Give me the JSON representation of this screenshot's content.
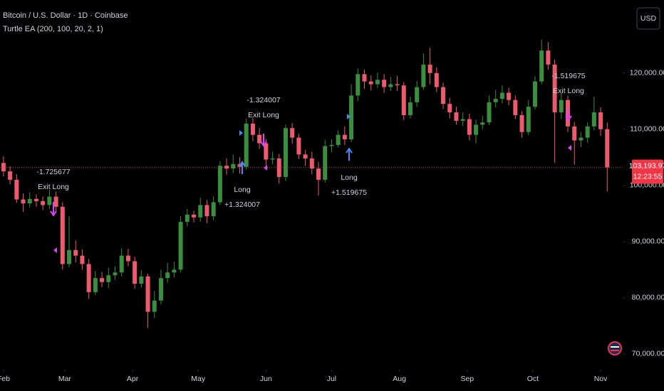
{
  "chart_data": {
    "type": "candlestick",
    "title": "Bitcoin / U.S. Dollar · 1D · Coinbase",
    "subtitle": "Turtle EA (200, 100, 20, 2, 1)",
    "currency": "USD",
    "up_color": "#3a8f3e",
    "down_color": "#ee5a6d",
    "grid": false,
    "xlim": [
      -1.6,
      283.4
    ],
    "ylim": [
      67200,
      133000
    ],
    "xticks": [
      {
        "value": 0,
        "label": "Feb"
      },
      {
        "value": 28,
        "label": "Mar"
      },
      {
        "value": 59,
        "label": "Apr"
      },
      {
        "value": 89,
        "label": "May"
      },
      {
        "value": 120,
        "label": "Jun"
      },
      {
        "value": 150,
        "label": "Jul"
      },
      {
        "value": 181,
        "label": "Aug"
      },
      {
        "value": 212,
        "label": "Sep"
      },
      {
        "value": 242,
        "label": "Oct"
      },
      {
        "value": 273,
        "label": "Nov"
      }
    ],
    "yticks": [
      {
        "value": 70000,
        "label": "70,000.00"
      },
      {
        "value": 80000,
        "label": "80,000.00"
      },
      {
        "value": 90000,
        "label": "90,000.00"
      },
      {
        "value": 100000,
        "label": "100,000.00"
      },
      {
        "value": 110000,
        "label": "110,000.00"
      },
      {
        "value": 120000,
        "label": "120,000.00"
      }
    ],
    "x": [
      0,
      3,
      6,
      9,
      12,
      15,
      18,
      21,
      24,
      27,
      30,
      33,
      36,
      39,
      42,
      45,
      48,
      51,
      54,
      57,
      60,
      63,
      66,
      69,
      72,
      75,
      78,
      81,
      84,
      87,
      90,
      93,
      96,
      99,
      102,
      105,
      108,
      111,
      114,
      117,
      120,
      123,
      126,
      129,
      132,
      135,
      138,
      141,
      144,
      147,
      150,
      153,
      156,
      159,
      162,
      165,
      168,
      171,
      174,
      177,
      180,
      183,
      186,
      189,
      192,
      195,
      198,
      201,
      204,
      207,
      210,
      213,
      216,
      219,
      222,
      225,
      228,
      231,
      234,
      237,
      240,
      243,
      246,
      249,
      252,
      255,
      258,
      261,
      264,
      267,
      270,
      273,
      276
    ],
    "open": [
      104000,
      102500,
      101000,
      97500,
      96800,
      97600,
      97200,
      96500,
      98000,
      96200,
      86000,
      88500,
      87500,
      86000,
      81000,
      83500,
      82800,
      84000,
      84500,
      87500,
      86500,
      82500,
      83800,
      77500,
      79500,
      83500,
      84500,
      85000,
      93500,
      94800,
      94300,
      96500,
      94500,
      97000,
      103500,
      103000,
      103800,
      103300,
      111000,
      109000,
      107500,
      104600,
      104800,
      101500,
      110200,
      108500,
      105500,
      104800,
      103000,
      101000,
      107000,
      107200,
      109000,
      108200,
      116000,
      119800,
      118500,
      118000,
      118800,
      117500,
      118000,
      117800,
      112500,
      114800,
      117500,
      121500,
      120000,
      117500,
      114500,
      113000,
      111500,
      111800,
      109000,
      110800,
      111200,
      114800,
      115400,
      116500,
      115200,
      112500,
      109500,
      114000,
      118500,
      124000,
      121500,
      113000,
      115200,
      110500,
      108000,
      108500,
      110500,
      113000,
      110000
    ],
    "high": [
      105200,
      103400,
      102000,
      98600,
      98800,
      98400,
      98000,
      99200,
      98900,
      97000,
      94500,
      90200,
      88600,
      86900,
      84800,
      84600,
      85300,
      85600,
      88800,
      88700,
      87300,
      84900,
      84300,
      81200,
      85000,
      86200,
      86400,
      94500,
      95800,
      95500,
      97800,
      97400,
      98000,
      104300,
      104800,
      105500,
      105000,
      111900,
      112000,
      110200,
      108300,
      106000,
      105600,
      110800,
      111100,
      109200,
      106300,
      106000,
      104200,
      108100,
      108200,
      109800,
      110500,
      118000,
      120800,
      120600,
      119600,
      120100,
      119800,
      119300,
      119500,
      118400,
      115800,
      118600,
      123500,
      124500,
      121000,
      118300,
      115600,
      114000,
      113000,
      112800,
      111700,
      112400,
      116000,
      117000,
      117800,
      117400,
      116000,
      113200,
      115200,
      119400,
      126000,
      125500,
      122400,
      116500,
      116000,
      111300,
      109500,
      111200,
      115800,
      113900,
      111200
    ],
    "low": [
      101600,
      100200,
      96900,
      95300,
      96000,
      96200,
      95600,
      95800,
      95400,
      85000,
      85400,
      86300,
      85000,
      79800,
      80500,
      81900,
      81700,
      83200,
      83800,
      85600,
      81600,
      81800,
      74600,
      76400,
      78800,
      82700,
      83600,
      84500,
      92700,
      93400,
      93500,
      93300,
      93800,
      96500,
      101900,
      102200,
      102100,
      102800,
      107900,
      106500,
      103500,
      103800,
      100300,
      100800,
      107400,
      104700,
      103500,
      102000,
      98200,
      100500,
      105900,
      106800,
      107200,
      107700,
      115000,
      117200,
      116900,
      117300,
      116500,
      116800,
      116800,
      111600,
      111900,
      114000,
      117000,
      118000,
      116600,
      113600,
      111900,
      110800,
      110600,
      108000,
      107500,
      110000,
      110700,
      113900,
      114600,
      114300,
      111800,
      108500,
      109000,
      113500,
      118000,
      120600,
      104000,
      111800,
      109500,
      103700,
      106800,
      107600,
      109800,
      108800,
      98900
    ],
    "close": [
      102500,
      101000,
      97500,
      96800,
      97600,
      97200,
      96500,
      98000,
      96200,
      86000,
      88500,
      87500,
      86000,
      81000,
      83500,
      82800,
      84000,
      84500,
      87500,
      86500,
      82500,
      83800,
      77500,
      79500,
      83500,
      84500,
      85000,
      93500,
      94800,
      94300,
      96500,
      94500,
      97000,
      103500,
      103000,
      103800,
      103300,
      111000,
      109000,
      107500,
      104600,
      104800,
      101500,
      110200,
      108500,
      105500,
      104800,
      103000,
      101000,
      107000,
      107200,
      109000,
      108200,
      116000,
      119800,
      118500,
      118000,
      118800,
      117500,
      118000,
      117800,
      112500,
      114800,
      117500,
      121500,
      120000,
      117500,
      114500,
      113000,
      111500,
      111800,
      109000,
      110800,
      111200,
      114800,
      115400,
      116500,
      115200,
      112500,
      109500,
      114000,
      118500,
      124000,
      121500,
      113000,
      115200,
      110500,
      108000,
      108500,
      110500,
      113000,
      110000,
      103190
    ],
    "last_price": {
      "value": 103193.97,
      "label": "103,193.97"
    },
    "countdown": "12:23:55",
    "annotations": [
      {
        "lines": [
          "-1.725677",
          "Exit Long"
        ]
      },
      {
        "lines": [
          "-1.324007",
          "Exit Long"
        ]
      },
      {
        "lines": [
          "Long",
          "+1.324007"
        ]
      },
      {
        "lines": [
          "Long",
          "+1.519675"
        ]
      },
      {
        "lines": [
          "-1.519675",
          "Exit Long"
        ]
      }
    ]
  }
}
